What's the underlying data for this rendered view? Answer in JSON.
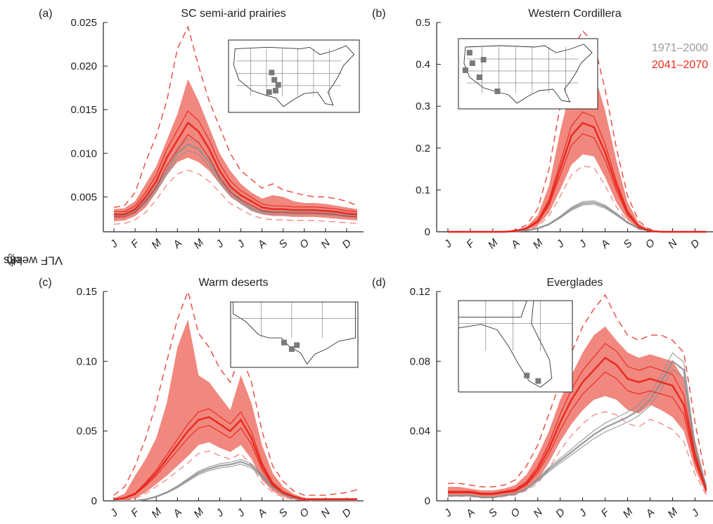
{
  "figure": {
    "ylabel_prefix": "VLF weeks per 10",
    "ylabel_exp1": "4",
    "ylabel_mid": " km",
    "ylabel_exp2": "−2"
  },
  "legend": {
    "items": [
      {
        "label": "1971–2000",
        "color": "#999999"
      },
      {
        "label": "2041–2070",
        "color": "#ee2a1b"
      }
    ]
  },
  "colors": {
    "historical": "#8f8f8f",
    "future": "#e8251a",
    "future_band": "#ee6a5f"
  },
  "chart_data": [
    {
      "type": "line",
      "panel": "(a)",
      "title": "SC semi-arid prairies",
      "x_ticks": [
        "J",
        "F",
        "M",
        "A",
        "M",
        "J",
        "J",
        "A",
        "S",
        "O",
        "N",
        "D"
      ],
      "y_ticks": [
        "0.025",
        "0.020",
        "0.015",
        "0.010",
        "0.005"
      ],
      "ylim": [
        0.001,
        0.025
      ],
      "x": [
        0,
        0.5,
        1,
        1.5,
        2,
        2.5,
        3,
        3.5,
        4,
        4.5,
        5,
        5.5,
        6,
        6.5,
        7,
        7.5,
        8,
        8.5,
        9,
        9.5,
        10,
        10.5,
        11,
        11.5
      ],
      "historical_mean": [
        0.0028,
        0.0029,
        0.0034,
        0.0045,
        0.006,
        0.008,
        0.01,
        0.011,
        0.0105,
        0.009,
        0.007,
        0.0055,
        0.0045,
        0.0037,
        0.0033,
        0.0032,
        0.0032,
        0.0032,
        0.0032,
        0.0032,
        0.0031,
        0.003,
        0.0029,
        0.0028
      ],
      "future_mean": [
        0.003,
        0.003,
        0.0036,
        0.005,
        0.0068,
        0.0095,
        0.0115,
        0.0135,
        0.0125,
        0.0105,
        0.008,
        0.0062,
        0.0052,
        0.0045,
        0.0038,
        0.0036,
        0.0036,
        0.0035,
        0.0035,
        0.0035,
        0.0034,
        0.0033,
        0.0031,
        0.003
      ],
      "future_low": [
        0.0022,
        0.0023,
        0.0028,
        0.0038,
        0.0055,
        0.0075,
        0.009,
        0.0095,
        0.009,
        0.008,
        0.0065,
        0.005,
        0.0042,
        0.0034,
        0.003,
        0.0028,
        0.0028,
        0.0027,
        0.0027,
        0.0027,
        0.0026,
        0.0025,
        0.0024,
        0.0023
      ],
      "future_high": [
        0.0036,
        0.0037,
        0.0045,
        0.0065,
        0.0085,
        0.0115,
        0.0145,
        0.0185,
        0.016,
        0.013,
        0.01,
        0.008,
        0.0065,
        0.0055,
        0.0048,
        0.0052,
        0.005,
        0.0045,
        0.0043,
        0.0043,
        0.0042,
        0.004,
        0.0038,
        0.0036
      ],
      "future_max": [
        0.0038,
        0.004,
        0.0055,
        0.009,
        0.012,
        0.016,
        0.022,
        0.0245,
        0.02,
        0.016,
        0.013,
        0.01,
        0.008,
        0.007,
        0.006,
        0.0065,
        0.0058,
        0.0055,
        0.0052,
        0.005,
        0.005,
        0.0048,
        0.0045,
        0.004
      ]
    },
    {
      "type": "line",
      "panel": "(b)",
      "title": "Western Cordillera",
      "x_ticks": [
        "J",
        "F",
        "M",
        "A",
        "M",
        "J",
        "J",
        "A",
        "S",
        "O",
        "N",
        "D"
      ],
      "y_ticks": [
        "0.5",
        "0.4",
        "0.3",
        "0.2",
        "0.1",
        "0"
      ],
      "ylim": [
        0,
        0.5
      ],
      "x": [
        0,
        0.5,
        1,
        1.5,
        2,
        2.5,
        3,
        3.5,
        4,
        4.5,
        5,
        5.5,
        6,
        6.5,
        7,
        7.5,
        8,
        8.5,
        9,
        9.5,
        10,
        10.5,
        11,
        11.5
      ],
      "historical_mean": [
        0,
        0,
        0,
        0,
        0,
        0,
        0.001,
        0.003,
        0.008,
        0.018,
        0.035,
        0.055,
        0.068,
        0.07,
        0.06,
        0.042,
        0.022,
        0.008,
        0.002,
        0,
        0,
        0,
        0,
        0
      ],
      "future_mean": [
        0,
        0,
        0,
        0,
        0,
        0,
        0.002,
        0.008,
        0.025,
        0.07,
        0.15,
        0.23,
        0.26,
        0.25,
        0.19,
        0.11,
        0.045,
        0.012,
        0.002,
        0,
        0,
        0,
        0,
        0
      ],
      "future_low": [
        0,
        0,
        0,
        0,
        0,
        0,
        0.001,
        0.004,
        0.015,
        0.045,
        0.1,
        0.16,
        0.185,
        0.18,
        0.13,
        0.07,
        0.028,
        0.007,
        0.001,
        0,
        0,
        0,
        0,
        0
      ],
      "future_high": [
        0,
        0,
        0,
        0,
        0,
        0,
        0.003,
        0.012,
        0.04,
        0.11,
        0.24,
        0.35,
        0.4,
        0.38,
        0.29,
        0.17,
        0.07,
        0.02,
        0.004,
        0,
        0,
        0,
        0,
        0
      ],
      "future_max": [
        0,
        0,
        0,
        0,
        0,
        0,
        0.004,
        0.016,
        0.055,
        0.15,
        0.3,
        0.43,
        0.48,
        0.45,
        0.34,
        0.2,
        0.085,
        0.025,
        0.005,
        0,
        0,
        0,
        0,
        0
      ]
    },
    {
      "type": "line",
      "panel": "(c)",
      "title": "Warm deserts",
      "x_ticks": [
        "J",
        "F",
        "M",
        "A",
        "M",
        "J",
        "J",
        "A",
        "S",
        "O",
        "N",
        "D"
      ],
      "y_ticks": [
        "0.15",
        "0.10",
        "0.05",
        "0"
      ],
      "ylim": [
        0,
        0.15
      ],
      "x": [
        0,
        0.5,
        1,
        1.5,
        2,
        2.5,
        3,
        3.5,
        4,
        4.5,
        5,
        5.5,
        6,
        6.5,
        7,
        7.5,
        8,
        8.5,
        9,
        9.5,
        10,
        10.5,
        11,
        11.5
      ],
      "historical_mean": [
        0,
        0,
        0,
        0.001,
        0.003,
        0.006,
        0.01,
        0.015,
        0.02,
        0.023,
        0.025,
        0.026,
        0.028,
        0.025,
        0.018,
        0.01,
        0.005,
        0.002,
        0.001,
        0,
        0,
        0,
        0,
        0
      ],
      "future_mean": [
        0.001,
        0.002,
        0.005,
        0.012,
        0.02,
        0.03,
        0.04,
        0.05,
        0.058,
        0.06,
        0.055,
        0.05,
        0.058,
        0.045,
        0.025,
        0.012,
        0.006,
        0.003,
        0.001,
        0.001,
        0.001,
        0.001,
        0.001,
        0.001
      ],
      "future_low": [
        0,
        0,
        0.002,
        0.006,
        0.012,
        0.018,
        0.025,
        0.032,
        0.04,
        0.042,
        0.038,
        0.035,
        0.04,
        0.03,
        0.015,
        0.007,
        0.003,
        0.001,
        0,
        0,
        0,
        0,
        0,
        0
      ],
      "future_high": [
        0.002,
        0.005,
        0.018,
        0.03,
        0.045,
        0.07,
        0.11,
        0.13,
        0.09,
        0.085,
        0.075,
        0.065,
        0.09,
        0.07,
        0.04,
        0.02,
        0.01,
        0.005,
        0.002,
        0.002,
        0.002,
        0.002,
        0.002,
        0.002
      ],
      "future_max": [
        0.004,
        0.01,
        0.025,
        0.045,
        0.07,
        0.1,
        0.13,
        0.15,
        0.12,
        0.11,
        0.095,
        0.085,
        0.105,
        0.085,
        0.05,
        0.025,
        0.014,
        0.007,
        0.004,
        0.004,
        0.004,
        0.005,
        0.006,
        0.008
      ]
    },
    {
      "type": "line",
      "panel": "(d)",
      "title": "Everglades",
      "x_ticks": [
        "J",
        "A",
        "S",
        "O",
        "N",
        "D",
        "J",
        "F",
        "M",
        "A",
        "M",
        "J"
      ],
      "y_ticks": [
        "0.12",
        "0.08",
        "0.04",
        "0"
      ],
      "ylim": [
        0,
        0.12
      ],
      "x": [
        0,
        0.5,
        1,
        1.5,
        2,
        2.5,
        3,
        3.5,
        4,
        4.5,
        5,
        5.5,
        6,
        6.5,
        7,
        7.5,
        8,
        8.5,
        9,
        9.5,
        10,
        10.5,
        11,
        11.5
      ],
      "historical_mean": [
        0.003,
        0.003,
        0.003,
        0.002,
        0.002,
        0.003,
        0.004,
        0.007,
        0.012,
        0.018,
        0.023,
        0.028,
        0.033,
        0.038,
        0.042,
        0.045,
        0.048,
        0.052,
        0.058,
        0.068,
        0.08,
        0.075,
        0.03,
        0.008
      ],
      "future_mean": [
        0.005,
        0.005,
        0.005,
        0.004,
        0.004,
        0.005,
        0.006,
        0.01,
        0.018,
        0.03,
        0.045,
        0.058,
        0.068,
        0.075,
        0.082,
        0.078,
        0.07,
        0.068,
        0.07,
        0.068,
        0.066,
        0.055,
        0.025,
        0.006
      ],
      "future_low": [
        0.003,
        0.003,
        0.003,
        0.002,
        0.002,
        0.003,
        0.004,
        0.007,
        0.012,
        0.022,
        0.034,
        0.044,
        0.052,
        0.058,
        0.06,
        0.058,
        0.052,
        0.05,
        0.055,
        0.052,
        0.048,
        0.04,
        0.018,
        0.004
      ],
      "future_high": [
        0.008,
        0.008,
        0.007,
        0.006,
        0.006,
        0.007,
        0.009,
        0.015,
        0.026,
        0.04,
        0.058,
        0.072,
        0.085,
        0.095,
        0.1,
        0.092,
        0.085,
        0.082,
        0.084,
        0.082,
        0.08,
        0.07,
        0.035,
        0.009
      ],
      "future_max": [
        0.01,
        0.01,
        0.009,
        0.008,
        0.008,
        0.009,
        0.012,
        0.02,
        0.032,
        0.05,
        0.068,
        0.085,
        0.1,
        0.11,
        0.118,
        0.105,
        0.095,
        0.092,
        0.095,
        0.095,
        0.092,
        0.085,
        0.045,
        0.012
      ]
    }
  ],
  "insets": [
    {
      "panel": "(a)",
      "map": "United States"
    },
    {
      "panel": "(b)",
      "map": "United States"
    },
    {
      "panel": "(c)",
      "map": "Southwest US"
    },
    {
      "panel": "(d)",
      "map": "Florida"
    }
  ]
}
